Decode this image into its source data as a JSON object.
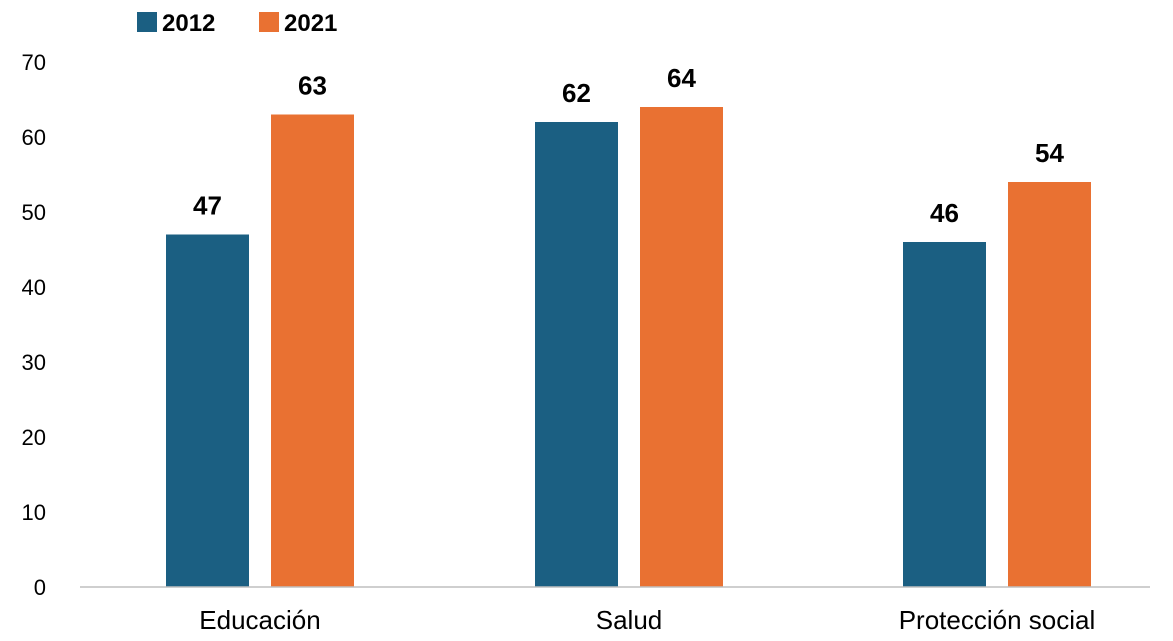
{
  "chart_data": {
    "type": "bar",
    "categories": [
      "Educación",
      "Salud",
      "Protección social"
    ],
    "series": [
      {
        "name": "2012",
        "color": "#1b5f82",
        "values": [
          47,
          62,
          46
        ]
      },
      {
        "name": "2021",
        "color": "#e97132",
        "values": [
          63,
          64,
          54
        ]
      }
    ],
    "ylim": [
      0,
      70
    ],
    "yticks": [
      0,
      10,
      20,
      30,
      40,
      50,
      60,
      70
    ],
    "grid": false,
    "legend": "top-left",
    "data_labels": true,
    "axis_color": "#bfbfbf"
  }
}
